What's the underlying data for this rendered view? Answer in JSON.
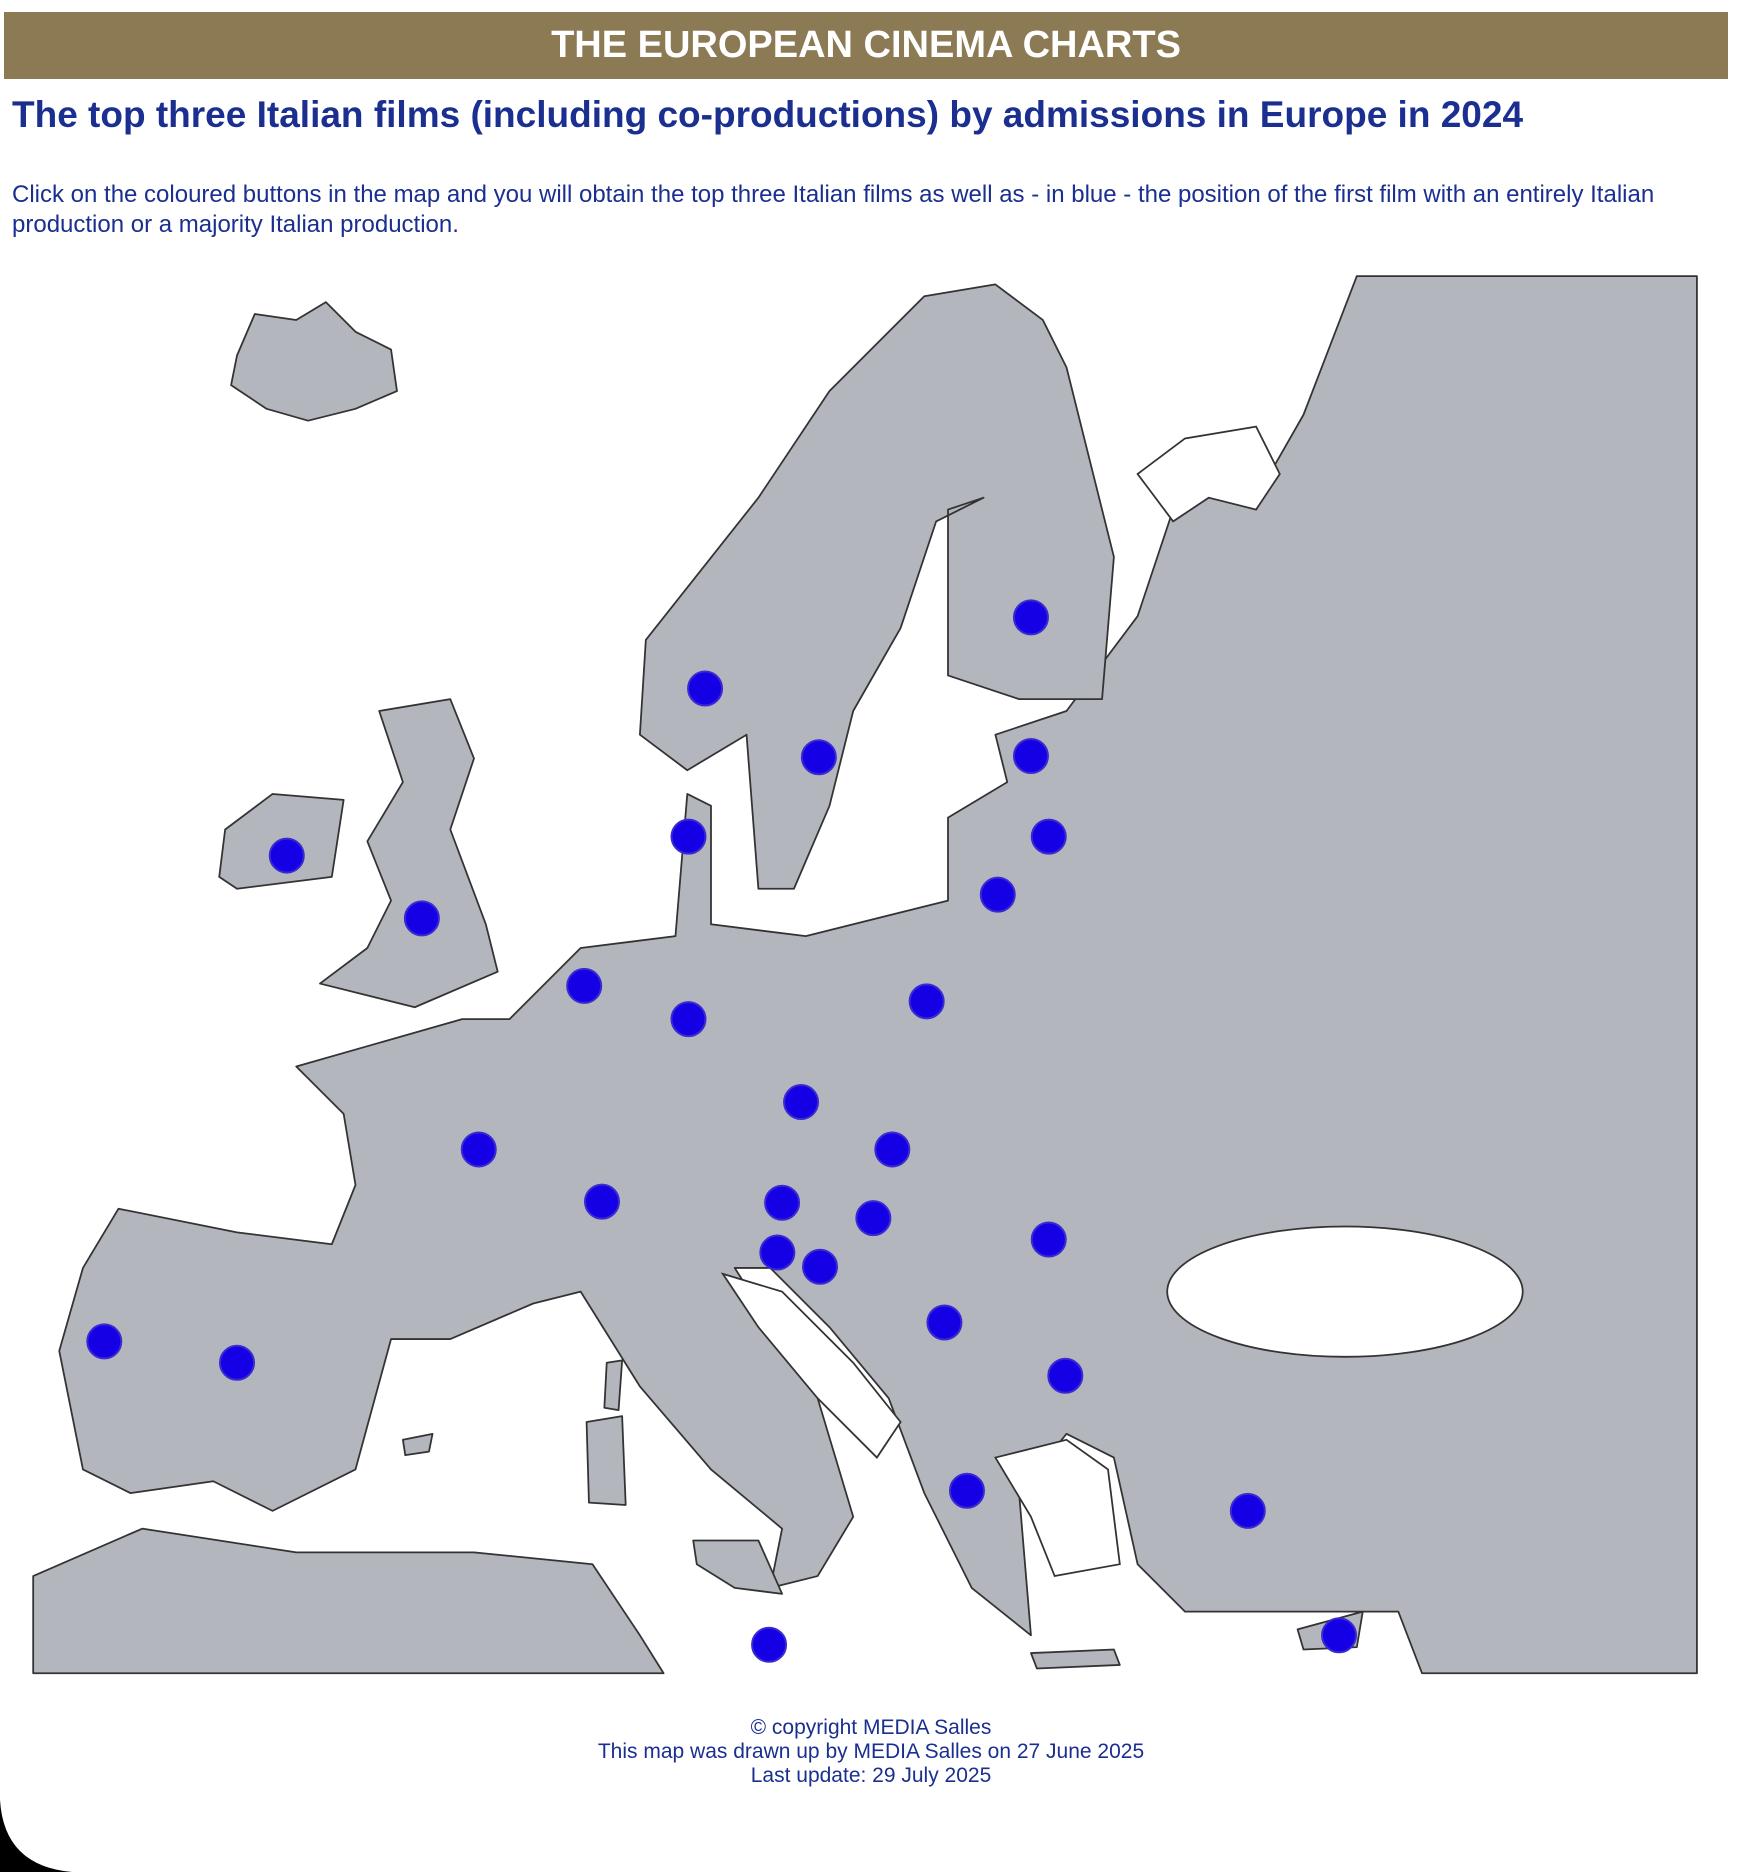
{
  "header": {
    "title": "THE EUROPEAN CINEMA CHARTS"
  },
  "heading": "The top three Italian films (including co-productions) by admissions in Europe in 2024",
  "description": "Click on the coloured buttons in the map and you will obtain the top three Italian films as well as - in blue - the position of the first film with an entirely Italian production or a majority Italian production.",
  "footer": {
    "lines": [
      "© copyright MEDIA Salles",
      "This map was drawn up by MEDIA Salles on 27 June 2025",
      "Last update: 29 July 2025"
    ]
  }
}
